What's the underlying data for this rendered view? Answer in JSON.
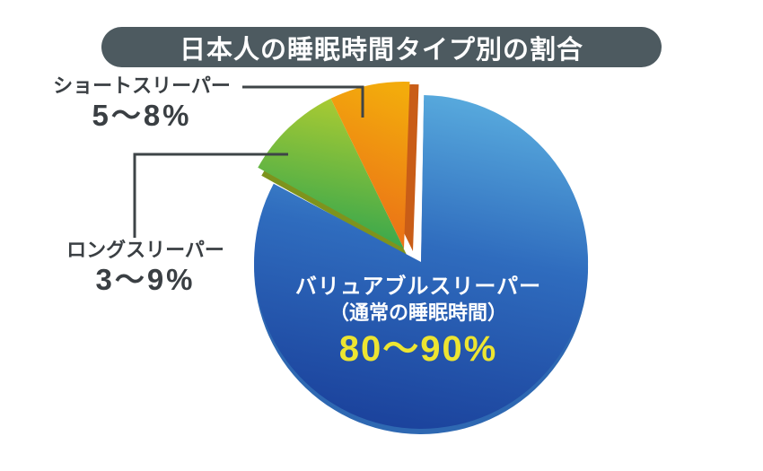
{
  "header": {
    "title": "日本人の睡眠時間タイプ別の割合",
    "bg_color": "#4d5a60",
    "text_color": "#ffffff"
  },
  "chart_data": {
    "type": "pie",
    "title": "日本人の睡眠時間タイプ別の割合",
    "unit": "%",
    "legend": "none",
    "leader_line_color": "#3e4447",
    "label_text_color": "#3a3f43",
    "slices": [
      {
        "id": "valuable-sleeper",
        "label": "バリュアブルスリーパー",
        "sublabel": "（通常の睡眠時間）",
        "value_range": "80〜90%",
        "approx_pct": 85,
        "exploded": false,
        "start_angle": 89,
        "end_angle": 152,
        "color_top": "#58aadd",
        "color_mid": "#2f6cbe",
        "color_bottom": "#1b429c",
        "side_color": "#2e68b2",
        "label_color": "#ffffff",
        "value_color": "#ede531"
      },
      {
        "id": "short-sleeper",
        "label": "ショートスリーパー",
        "value_range": "5〜8%",
        "approx_pct": 6.5,
        "exploded": true,
        "start_angle": 88,
        "end_angle": 116,
        "color_top": "#f3ab0c",
        "color_bottom": "#ea6b18",
        "side_color": "#c95d17",
        "label_color": "#3a3f43"
      },
      {
        "id": "long-sleeper",
        "label": "ロングスリーパー",
        "value_range": "3〜9%",
        "approx_pct": 6,
        "exploded": true,
        "start_angle": 116,
        "end_angle": 151,
        "color_top": "#abcb32",
        "color_bottom": "#2ea44f",
        "side_color": "#7e931d",
        "label_color": "#3a3f43"
      }
    ]
  }
}
